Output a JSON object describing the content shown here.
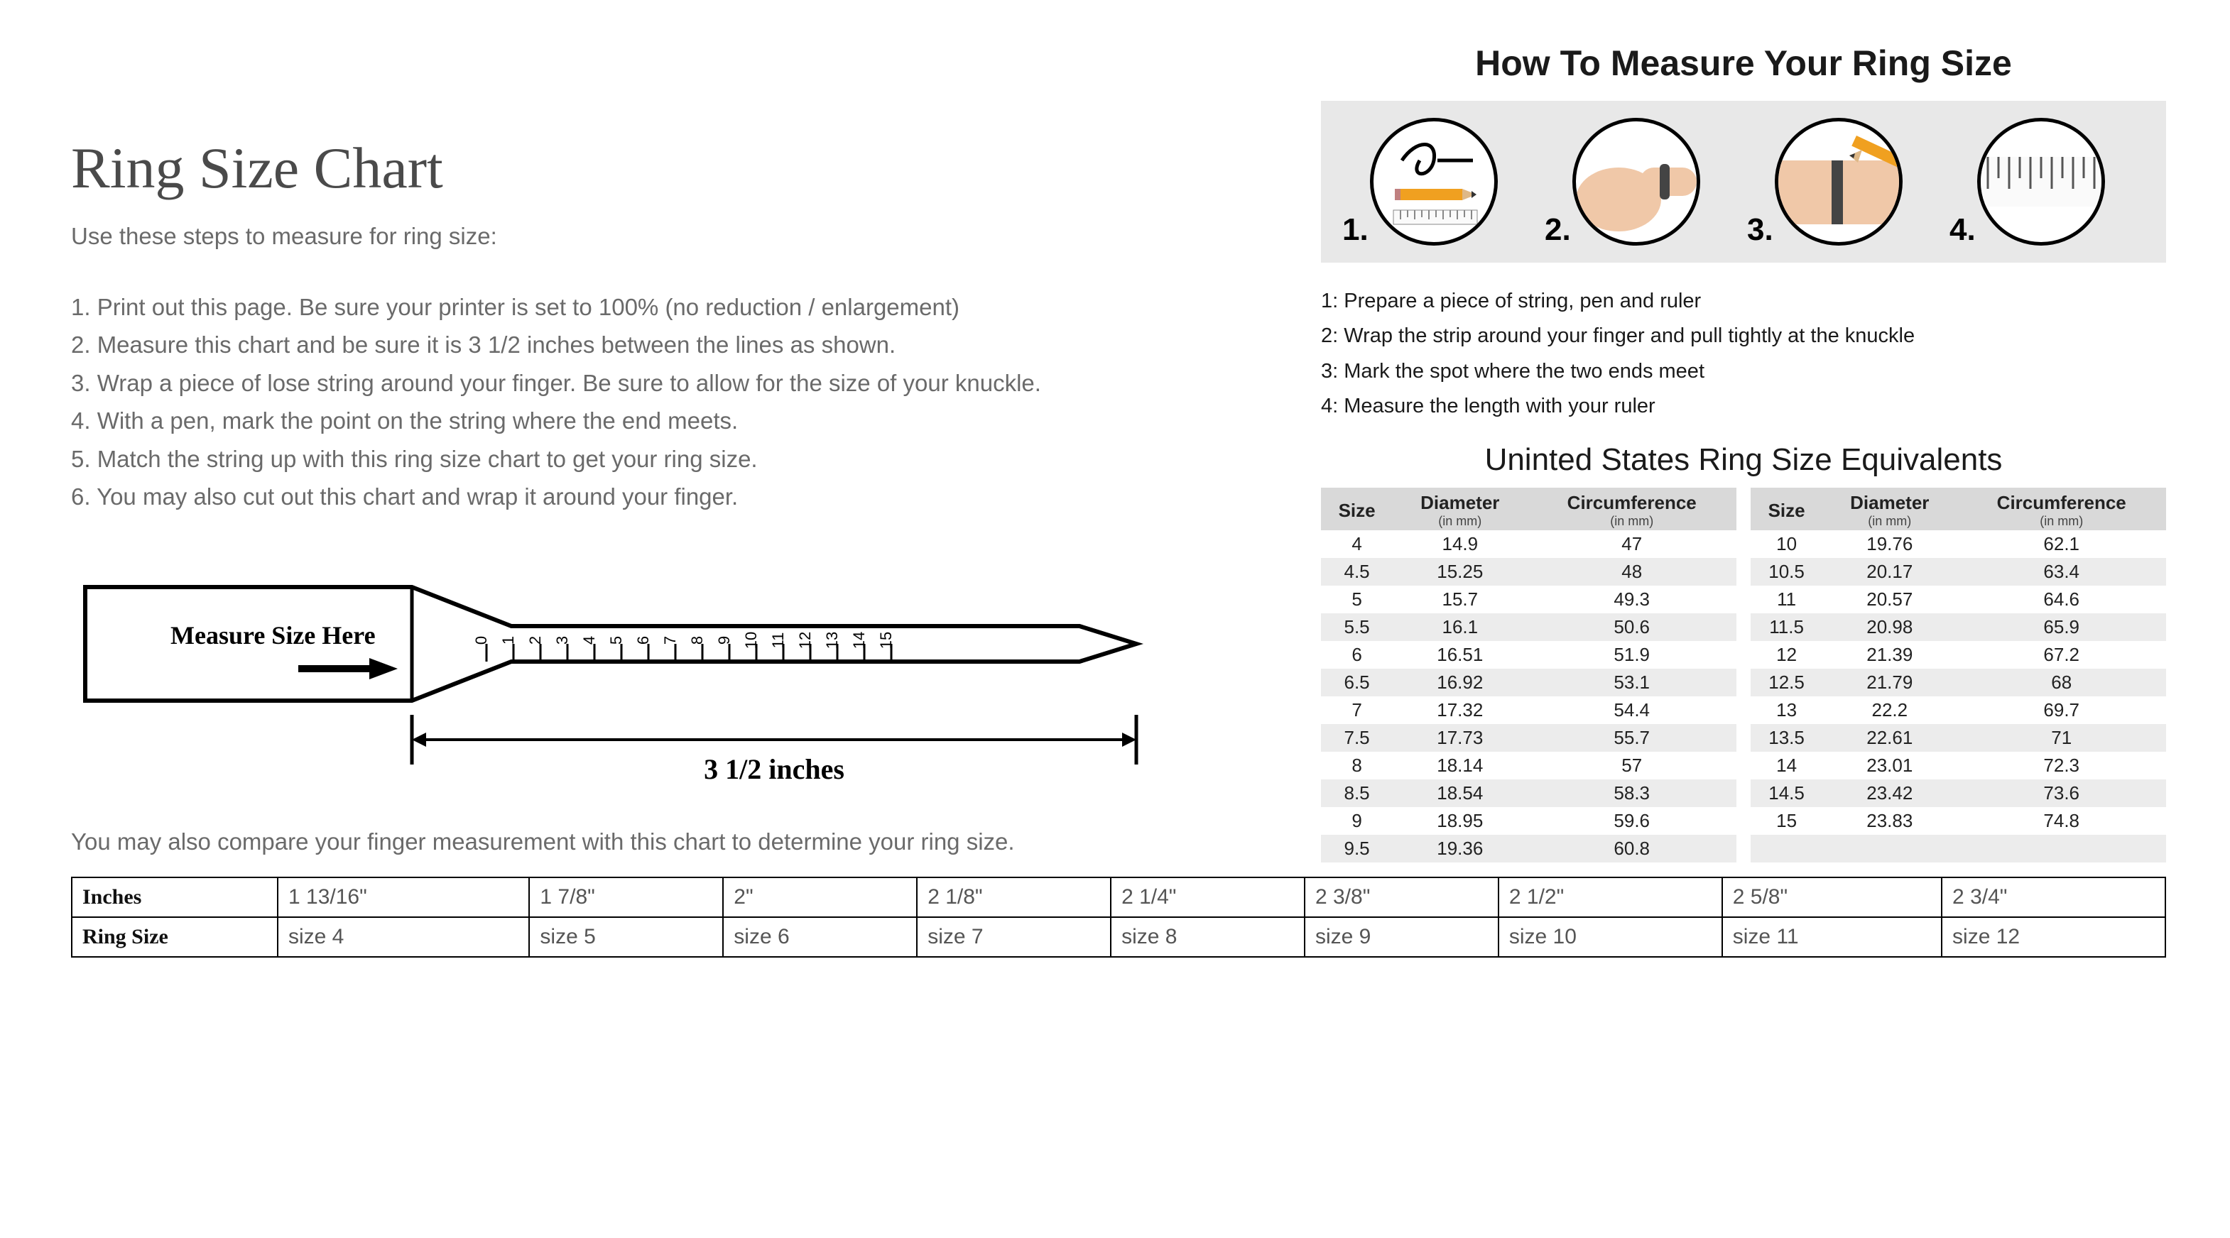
{
  "colors": {
    "background": "#ffffff",
    "heading": "#4a4a4a",
    "body_text": "#6a6a6a",
    "dark_text": "#1a1a1a",
    "icon_panel_bg": "#e8e8e8",
    "table_header_bg": "#d9d9d9",
    "table_zebra_bg": "#ececec",
    "border": "#000000",
    "pencil": "#f0a020",
    "skin": "#f0c8a8",
    "band": "#444444"
  },
  "left": {
    "title": "Ring Size Chart",
    "intro": "Use these steps to measure for ring size:",
    "steps": [
      "1. Print out this page. Be sure your printer is set to 100% (no reduction / enlargement)",
      "2. Measure this chart and be sure it is 3 1/2 inches between the lines as shown.",
      "3. Wrap a piece of lose string around your finger. Be sure to allow for the size of your knuckle.",
      "4. With a pen, mark the point on the string where the end meets.",
      "5. Match the string up with this ring size chart to get your ring size.",
      "6. You may also cut out this chart and wrap it around your finger."
    ],
    "ruler": {
      "label": "Measure Size Here",
      "ticks": [
        "0",
        "1",
        "2",
        "3",
        "4",
        "5",
        "6",
        "7",
        "8",
        "9",
        "10",
        "11",
        "12",
        "13",
        "14",
        "15"
      ],
      "span_label": "3 1/2 inches"
    },
    "compare_note": "You may also compare your finger measurement with this chart to determine your ring size."
  },
  "right": {
    "howto_title": "How To Measure Your Ring Size",
    "icon_numbers": [
      "1.",
      "2.",
      "3.",
      "4."
    ],
    "howto_steps": [
      "1: Prepare a piece of string, pen and ruler",
      "2: Wrap the strip around your finger and pull tightly at the knuckle",
      "3: Mark the spot where the two ends meet",
      "4: Measure the length with your ruler"
    ],
    "equiv_title": "Uninted States Ring Size Equivalents",
    "equiv_headers": {
      "size": "Size",
      "diameter": "Diameter",
      "diameter_sub": "(in mm)",
      "circ": "Circumference",
      "circ_sub": "(in mm)"
    },
    "equiv_left": [
      [
        "4",
        "14.9",
        "47"
      ],
      [
        "4.5",
        "15.25",
        "48"
      ],
      [
        "5",
        "15.7",
        "49.3"
      ],
      [
        "5.5",
        "16.1",
        "50.6"
      ],
      [
        "6",
        "16.51",
        "51.9"
      ],
      [
        "6.5",
        "16.92",
        "53.1"
      ],
      [
        "7",
        "17.32",
        "54.4"
      ],
      [
        "7.5",
        "17.73",
        "55.7"
      ],
      [
        "8",
        "18.14",
        "57"
      ],
      [
        "8.5",
        "18.54",
        "58.3"
      ],
      [
        "9",
        "18.95",
        "59.6"
      ],
      [
        "9.5",
        "19.36",
        "60.8"
      ]
    ],
    "equiv_right": [
      [
        "10",
        "19.76",
        "62.1"
      ],
      [
        "10.5",
        "20.17",
        "63.4"
      ],
      [
        "11",
        "20.57",
        "64.6"
      ],
      [
        "11.5",
        "20.98",
        "65.9"
      ],
      [
        "12",
        "21.39",
        "67.2"
      ],
      [
        "12.5",
        "21.79",
        "68"
      ],
      [
        "13",
        "22.2",
        "69.7"
      ],
      [
        "13.5",
        "22.61",
        "71"
      ],
      [
        "14",
        "23.01",
        "72.3"
      ],
      [
        "14.5",
        "23.42",
        "73.6"
      ],
      [
        "15",
        "23.83",
        "74.8"
      ]
    ]
  },
  "bottom_table": {
    "row_headers": [
      "Inches",
      "Ring Size"
    ],
    "inches": [
      "1 13/16\"",
      "1 7/8\"",
      "2\"",
      "2 1/8\"",
      "2 1/4\"",
      "2 3/8\"",
      "2 1/2\"",
      "2 5/8\"",
      "2 3/4\""
    ],
    "sizes": [
      "size 4",
      "size 5",
      "size 6",
      "size 7",
      "size 8",
      "size 9",
      "size 10",
      "size 11",
      "size 12"
    ]
  }
}
